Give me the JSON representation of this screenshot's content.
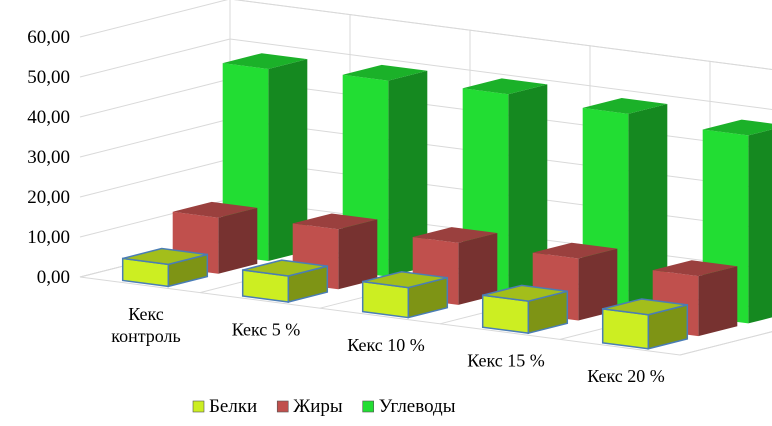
{
  "chart_data": {
    "type": "bar",
    "variant": "3d-column",
    "categories": [
      "Кекс контроль",
      "Кекс 5 %",
      "Кекс 10 %",
      "Кекс 15 %",
      "Кекс 20 %"
    ],
    "series": [
      {
        "name": "Белки",
        "color": "#ccee22",
        "values": [
          5.5,
          6.5,
          7.5,
          8.0,
          8.5
        ]
      },
      {
        "name": "Жиры",
        "color": "#c0504d",
        "values": [
          14.0,
          15.0,
          15.5,
          15.5,
          15.0
        ]
      },
      {
        "name": "Углеводы",
        "color": "#22dd33",
        "values": [
          48.0,
          49.0,
          49.5,
          48.5,
          47.0
        ]
      }
    ],
    "y_ticks": [
      "0,00",
      "10,00",
      "20,00",
      "30,00",
      "40,00",
      "50,00",
      "60,00"
    ],
    "ylim": [
      0,
      60
    ],
    "grid": true,
    "legend_position": "bottom"
  }
}
